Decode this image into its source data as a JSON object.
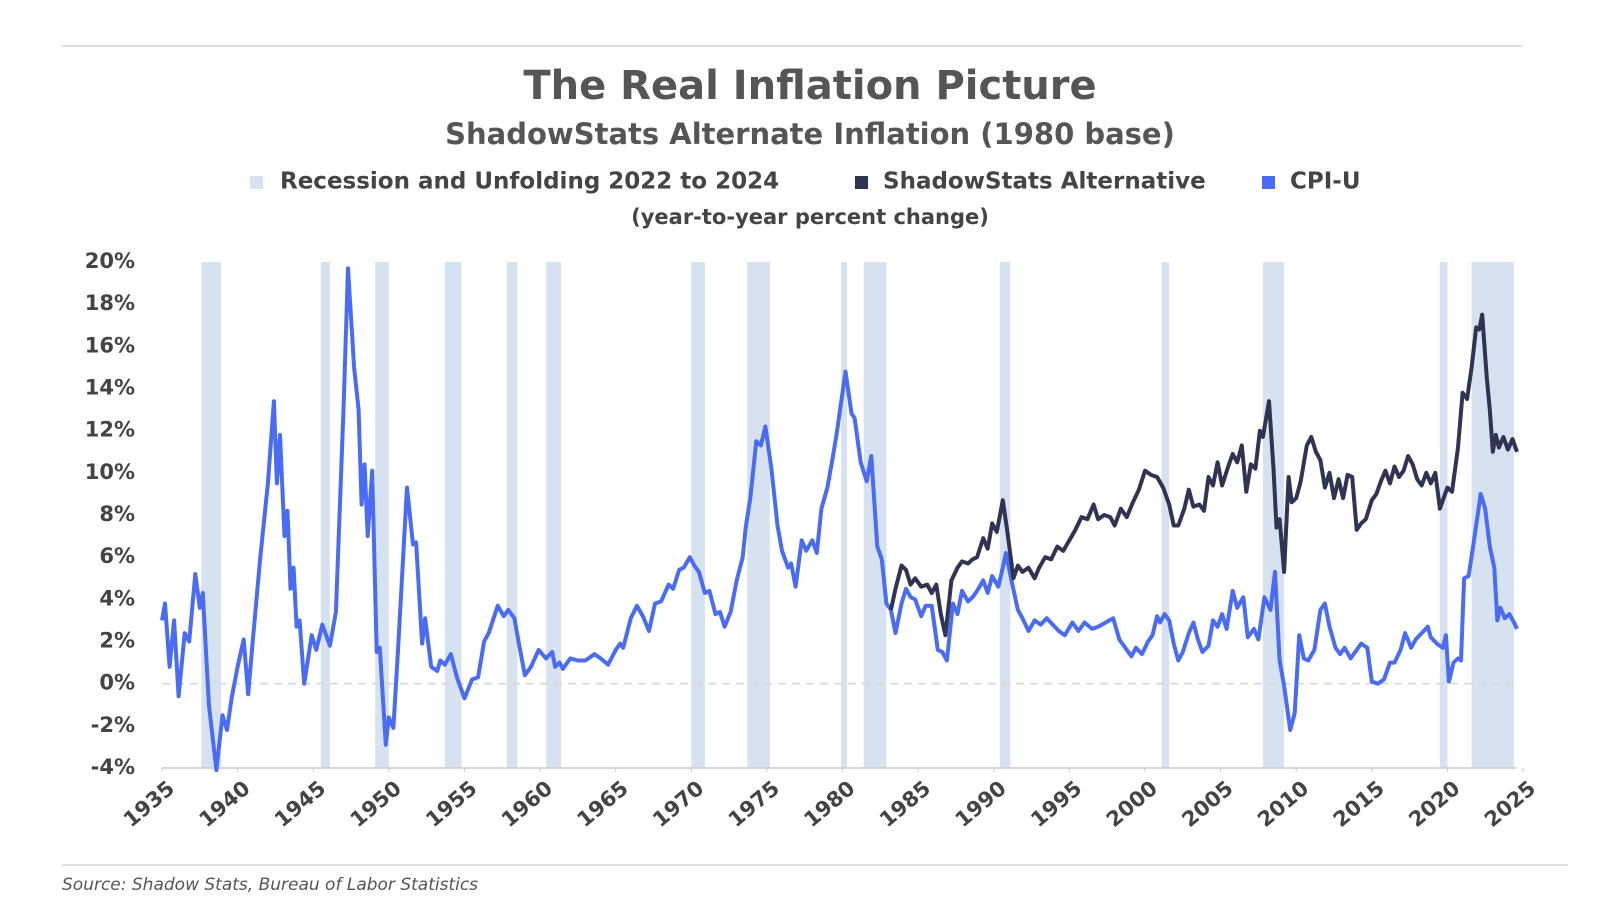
{
  "chart_data": {
    "type": "line",
    "title": "The Real Inflation Picture",
    "subtitle": "ShadowStats Alternate Inflation (1980 base)",
    "note": "(year-to-year percent change)",
    "source": "Source: Shadow Stats, Bureau of Labor Statistics",
    "xlim": [
      1935,
      2024.6
    ],
    "xticks": [
      1935,
      1940,
      1945,
      1950,
      1955,
      1960,
      1965,
      1970,
      1975,
      1980,
      1985,
      1990,
      1995,
      2000,
      2005,
      2010,
      2015,
      2020,
      2025
    ],
    "ylim": [
      -4,
      20
    ],
    "yticks": [
      {
        "value": -4,
        "label": "-4%"
      },
      {
        "value": -2,
        "label": "-2%"
      },
      {
        "value": 0,
        "label": "0%"
      },
      {
        "value": 2,
        "label": "2%"
      },
      {
        "value": 4,
        "label": "4%"
      },
      {
        "value": 6,
        "label": "6%"
      },
      {
        "value": 8,
        "label": "8%"
      },
      {
        "value": 10,
        "label": "10%"
      },
      {
        "value": 12,
        "label": "12%"
      },
      {
        "value": 14,
        "label": "14%"
      },
      {
        "value": 16,
        "label": "16%"
      },
      {
        "value": 18,
        "label": "18%"
      },
      {
        "value": 20,
        "label": "20%"
      }
    ],
    "recessions": {
      "name": "Recession and Unfolding 2022 to 2024",
      "color": "#d7e2f1",
      "bands": [
        [
          1937.6,
          1938.9
        ],
        [
          1945.5,
          1946.1
        ],
        [
          1949.1,
          1950.0
        ],
        [
          1953.7,
          1954.8
        ],
        [
          1957.8,
          1958.5
        ],
        [
          1960.4,
          1961.4
        ],
        [
          1970.0,
          1970.9
        ],
        [
          1973.7,
          1975.2
        ],
        [
          1979.9,
          1980.3
        ],
        [
          1981.4,
          1982.9
        ],
        [
          1990.4,
          1991.1
        ],
        [
          2001.1,
          2001.6
        ],
        [
          2007.8,
          2009.2
        ],
        [
          2019.5,
          2020.0
        ],
        [
          2021.6,
          2024.4
        ]
      ]
    },
    "series": [
      {
        "name": "ShadowStats Alternative",
        "color": "#2f3452",
        "x": [
          1983.2,
          1983.5,
          1983.9,
          1984.2,
          1984.5,
          1984.8,
          1985.2,
          1985.6,
          1985.9,
          1986.2,
          1986.5,
          1986.8,
          1987.2,
          1987.6,
          1987.9,
          1988.3,
          1988.6,
          1988.9,
          1989.3,
          1989.6,
          1989.9,
          1990.2,
          1990.6,
          1990.9,
          1991.3,
          1991.6,
          1991.9,
          1992.3,
          1992.7,
          1993.0,
          1993.4,
          1993.8,
          1994.2,
          1994.6,
          1995.0,
          1995.4,
          1995.8,
          1996.2,
          1996.6,
          1996.9,
          1997.3,
          1997.7,
          1998.0,
          1998.4,
          1998.8,
          1999.2,
          1999.6,
          2000.0,
          2000.4,
          2000.8,
          2001.2,
          2001.6,
          2001.9,
          2002.2,
          2002.6,
          2002.9,
          2003.2,
          2003.6,
          2003.9,
          2004.2,
          2004.5,
          2004.8,
          2005.1,
          2005.5,
          2005.8,
          2006.1,
          2006.4,
          2006.7,
          2007.0,
          2007.3,
          2007.6,
          2007.8,
          2008.2,
          2008.5,
          2008.7,
          2008.9,
          2009.2,
          2009.5,
          2009.7,
          2010.0,
          2010.3,
          2010.7,
          2011.0,
          2011.3,
          2011.6,
          2011.9,
          2012.2,
          2012.5,
          2012.8,
          2013.1,
          2013.4,
          2013.7,
          2014.0,
          2014.3,
          2014.6,
          2015.0,
          2015.3,
          2015.6,
          2015.9,
          2016.2,
          2016.5,
          2016.8,
          2017.1,
          2017.4,
          2017.7,
          2018.0,
          2018.3,
          2018.6,
          2018.9,
          2019.2,
          2019.5,
          2019.7,
          2020.0,
          2020.3,
          2020.7,
          2021.0,
          2021.3,
          2021.6,
          2021.9,
          2022.1,
          2022.3,
          2022.6,
          2022.8,
          2023.0,
          2023.2,
          2023.4,
          2023.7,
          2024.0,
          2024.3,
          2024.6
        ],
        "values": [
          3.5,
          4.5,
          5.6,
          5.4,
          4.7,
          5.0,
          4.6,
          4.7,
          4.3,
          4.7,
          3.3,
          2.3,
          4.9,
          5.5,
          5.8,
          5.7,
          5.9,
          6.0,
          6.9,
          6.4,
          7.6,
          7.2,
          8.7,
          7.2,
          5.0,
          5.6,
          5.3,
          5.5,
          5.0,
          5.5,
          6.0,
          5.9,
          6.5,
          6.3,
          6.8,
          7.3,
          7.9,
          7.8,
          8.5,
          7.8,
          8.0,
          7.9,
          7.5,
          8.3,
          7.9,
          8.6,
          9.2,
          10.1,
          9.9,
          9.8,
          9.3,
          8.5,
          7.5,
          7.5,
          8.3,
          9.2,
          8.4,
          8.5,
          8.2,
          9.8,
          9.4,
          10.5,
          9.4,
          10.3,
          10.9,
          10.5,
          11.3,
          9.1,
          10.4,
          10.2,
          12.0,
          11.7,
          13.4,
          10.2,
          7.4,
          7.8,
          5.3,
          9.8,
          8.6,
          8.8,
          9.6,
          11.3,
          11.7,
          11.0,
          10.6,
          9.3,
          10.0,
          8.8,
          9.7,
          8.8,
          9.9,
          9.8,
          7.3,
          7.6,
          7.8,
          8.7,
          9.0,
          9.6,
          10.1,
          9.5,
          10.3,
          9.8,
          10.1,
          10.8,
          10.4,
          9.7,
          9.4,
          10.0,
          9.5,
          10.0,
          8.3,
          8.7,
          9.3,
          9.1,
          11.2,
          13.8,
          13.5,
          15.0,
          16.9,
          16.8,
          17.5,
          14.5,
          13.0,
          11.0,
          11.8,
          11.2,
          11.7,
          11.1,
          11.6,
          11.0
        ]
      },
      {
        "name": "CPI-U",
        "color": "#4a6cf5",
        "x": [
          1935.0,
          1935.2,
          1935.5,
          1935.8,
          1936.1,
          1936.5,
          1936.8,
          1937.2,
          1937.5,
          1937.7,
          1938.1,
          1938.6,
          1939.0,
          1939.3,
          1939.6,
          1940.0,
          1940.4,
          1940.7,
          1941.0,
          1941.5,
          1942.0,
          1942.4,
          1942.6,
          1942.8,
          1943.1,
          1943.3,
          1943.5,
          1943.7,
          1943.9,
          1944.1,
          1944.4,
          1944.9,
          1945.2,
          1945.6,
          1946.1,
          1946.5,
          1947.0,
          1947.3,
          1947.7,
          1948.0,
          1948.2,
          1948.4,
          1948.6,
          1948.9,
          1949.2,
          1949.4,
          1949.8,
          1950.0,
          1950.3,
          1950.6,
          1951.2,
          1951.6,
          1951.8,
          1952.2,
          1952.4,
          1952.8,
          1953.2,
          1953.4,
          1953.7,
          1954.1,
          1954.5,
          1955.0,
          1955.5,
          1955.9,
          1956.3,
          1956.6,
          1957.2,
          1957.6,
          1957.9,
          1958.3,
          1958.6,
          1959.0,
          1959.4,
          1959.9,
          1960.4,
          1960.8,
          1961.0,
          1961.3,
          1961.5,
          1962.0,
          1962.5,
          1963.0,
          1963.6,
          1964.0,
          1964.5,
          1965.0,
          1965.3,
          1965.5,
          1966.0,
          1966.4,
          1966.8,
          1967.2,
          1967.6,
          1968.0,
          1968.5,
          1968.8,
          1969.2,
          1969.5,
          1969.9,
          1970.2,
          1970.5,
          1970.9,
          1971.2,
          1971.6,
          1971.9,
          1972.2,
          1972.6,
          1973.0,
          1973.4,
          1973.6,
          1973.9,
          1974.3,
          1974.6,
          1974.9,
          1975.3,
          1975.7,
          1976.0,
          1976.4,
          1976.6,
          1976.9,
          1977.3,
          1977.6,
          1978.0,
          1978.3,
          1978.6,
          1979.0,
          1979.3,
          1979.6,
          1980.2,
          1980.6,
          1980.8,
          1981.2,
          1981.6,
          1981.9,
          1982.3,
          1982.6,
          1982.9,
          1983.2,
          1983.5,
          1983.9,
          1984.2,
          1984.5,
          1984.8,
          1985.2,
          1985.5,
          1985.9,
          1986.3,
          1986.6,
          1986.9,
          1987.3,
          1987.6,
          1987.9,
          1988.3,
          1988.6,
          1988.9,
          1989.3,
          1989.6,
          1989.9,
          1990.3,
          1990.6,
          1990.8,
          1991.2,
          1991.6,
          1991.9,
          1992.3,
          1992.7,
          1993.1,
          1993.5,
          1993.9,
          1994.3,
          1994.7,
          1995.2,
          1995.6,
          1996.0,
          1996.5,
          1996.9,
          1997.4,
          1997.9,
          1998.3,
          1998.7,
          1999.1,
          1999.4,
          1999.8,
          2000.2,
          2000.5,
          2000.8,
          2001.0,
          2001.3,
          2001.6,
          2001.9,
          2002.2,
          2002.5,
          2002.9,
          2003.2,
          2003.5,
          2003.8,
          2004.2,
          2004.5,
          2004.8,
          2005.1,
          2005.4,
          2005.8,
          2006.1,
          2006.5,
          2006.8,
          2007.2,
          2007.5,
          2007.9,
          2008.3,
          2008.6,
          2008.9,
          2009.2,
          2009.6,
          2009.9,
          2010.2,
          2010.5,
          2010.8,
          2011.2,
          2011.6,
          2011.9,
          2012.2,
          2012.6,
          2012.9,
          2013.2,
          2013.6,
          2013.9,
          2014.3,
          2014.7,
          2015.0,
          2015.4,
          2015.8,
          2016.2,
          2016.5,
          2016.9,
          2017.2,
          2017.6,
          2017.9,
          2018.3,
          2018.7,
          2018.9,
          2019.3,
          2019.7,
          2019.9,
          2020.1,
          2020.4,
          2020.7,
          2020.9,
          2021.1,
          2021.4,
          2021.7,
          2022.2,
          2022.5,
          2022.8,
          2023.1,
          2023.3,
          2023.5,
          2023.8,
          2024.1,
          2024.4,
          2024.6
        ],
        "values": [
          3.0,
          3.8,
          0.8,
          3.0,
          -0.6,
          2.4,
          2.0,
          5.2,
          3.6,
          4.3,
          -1.0,
          -4.1,
          -1.5,
          -2.2,
          -0.7,
          0.8,
          2.1,
          -0.5,
          2.0,
          6.0,
          9.5,
          13.4,
          9.5,
          11.8,
          7.0,
          8.2,
          4.5,
          5.5,
          2.7,
          3.0,
          0.0,
          2.3,
          1.6,
          2.8,
          1.8,
          3.4,
          13.0,
          19.7,
          15.0,
          13.0,
          8.5,
          10.4,
          7.0,
          10.1,
          1.5,
          1.7,
          -2.9,
          -1.6,
          -2.1,
          1.5,
          9.3,
          6.6,
          6.7,
          1.9,
          3.1,
          0.8,
          0.6,
          1.1,
          0.9,
          1.4,
          0.3,
          -0.7,
          0.2,
          0.3,
          2.0,
          2.4,
          3.7,
          3.2,
          3.5,
          3.1,
          1.9,
          0.4,
          0.8,
          1.6,
          1.2,
          1.5,
          0.8,
          1.0,
          0.7,
          1.2,
          1.1,
          1.1,
          1.4,
          1.2,
          0.9,
          1.6,
          1.9,
          1.7,
          3.1,
          3.7,
          3.2,
          2.5,
          3.8,
          3.9,
          4.7,
          4.5,
          5.4,
          5.5,
          6.0,
          5.6,
          5.3,
          4.3,
          4.4,
          3.3,
          3.4,
          2.7,
          3.4,
          4.9,
          6.0,
          7.4,
          8.8,
          11.5,
          11.3,
          12.2,
          10.2,
          7.5,
          6.3,
          5.5,
          5.7,
          4.6,
          6.8,
          6.3,
          6.8,
          6.2,
          8.3,
          9.3,
          10.5,
          11.8,
          14.8,
          12.8,
          12.6,
          10.5,
          9.6,
          10.8,
          6.5,
          5.9,
          3.8,
          3.5,
          2.4,
          3.8,
          4.5,
          4.1,
          4.0,
          3.2,
          3.7,
          3.7,
          1.6,
          1.5,
          1.1,
          3.8,
          3.3,
          4.4,
          3.9,
          4.1,
          4.4,
          4.9,
          4.3,
          5.1,
          4.6,
          5.5,
          6.2,
          4.8,
          3.5,
          3.1,
          2.5,
          3.0,
          2.8,
          3.1,
          2.8,
          2.5,
          2.3,
          2.9,
          2.5,
          2.9,
          2.6,
          2.7,
          2.9,
          3.1,
          2.1,
          1.7,
          1.3,
          1.7,
          1.4,
          2.0,
          2.3,
          3.2,
          2.9,
          3.3,
          3.0,
          1.9,
          1.1,
          1.5,
          2.4,
          2.9,
          2.1,
          1.5,
          1.8,
          3.0,
          2.7,
          3.3,
          2.6,
          4.4,
          3.6,
          4.1,
          2.2,
          2.6,
          2.1,
          4.1,
          3.5,
          5.3,
          1.1,
          -0.1,
          -2.2,
          -1.4,
          2.3,
          1.2,
          1.1,
          1.6,
          3.5,
          3.8,
          2.7,
          1.7,
          1.4,
          1.7,
          1.2,
          1.5,
          1.9,
          1.7,
          0.1,
          0.0,
          0.2,
          1.0,
          1.0,
          1.6,
          2.4,
          1.7,
          2.1,
          2.4,
          2.7,
          2.2,
          1.9,
          1.7,
          2.3,
          0.1,
          1.0,
          1.2,
          1.1,
          5.0,
          5.1,
          6.5,
          9.0,
          8.3,
          6.5,
          5.5,
          3.0,
          3.6,
          3.1,
          3.3,
          2.9,
          2.6
        ]
      }
    ]
  }
}
